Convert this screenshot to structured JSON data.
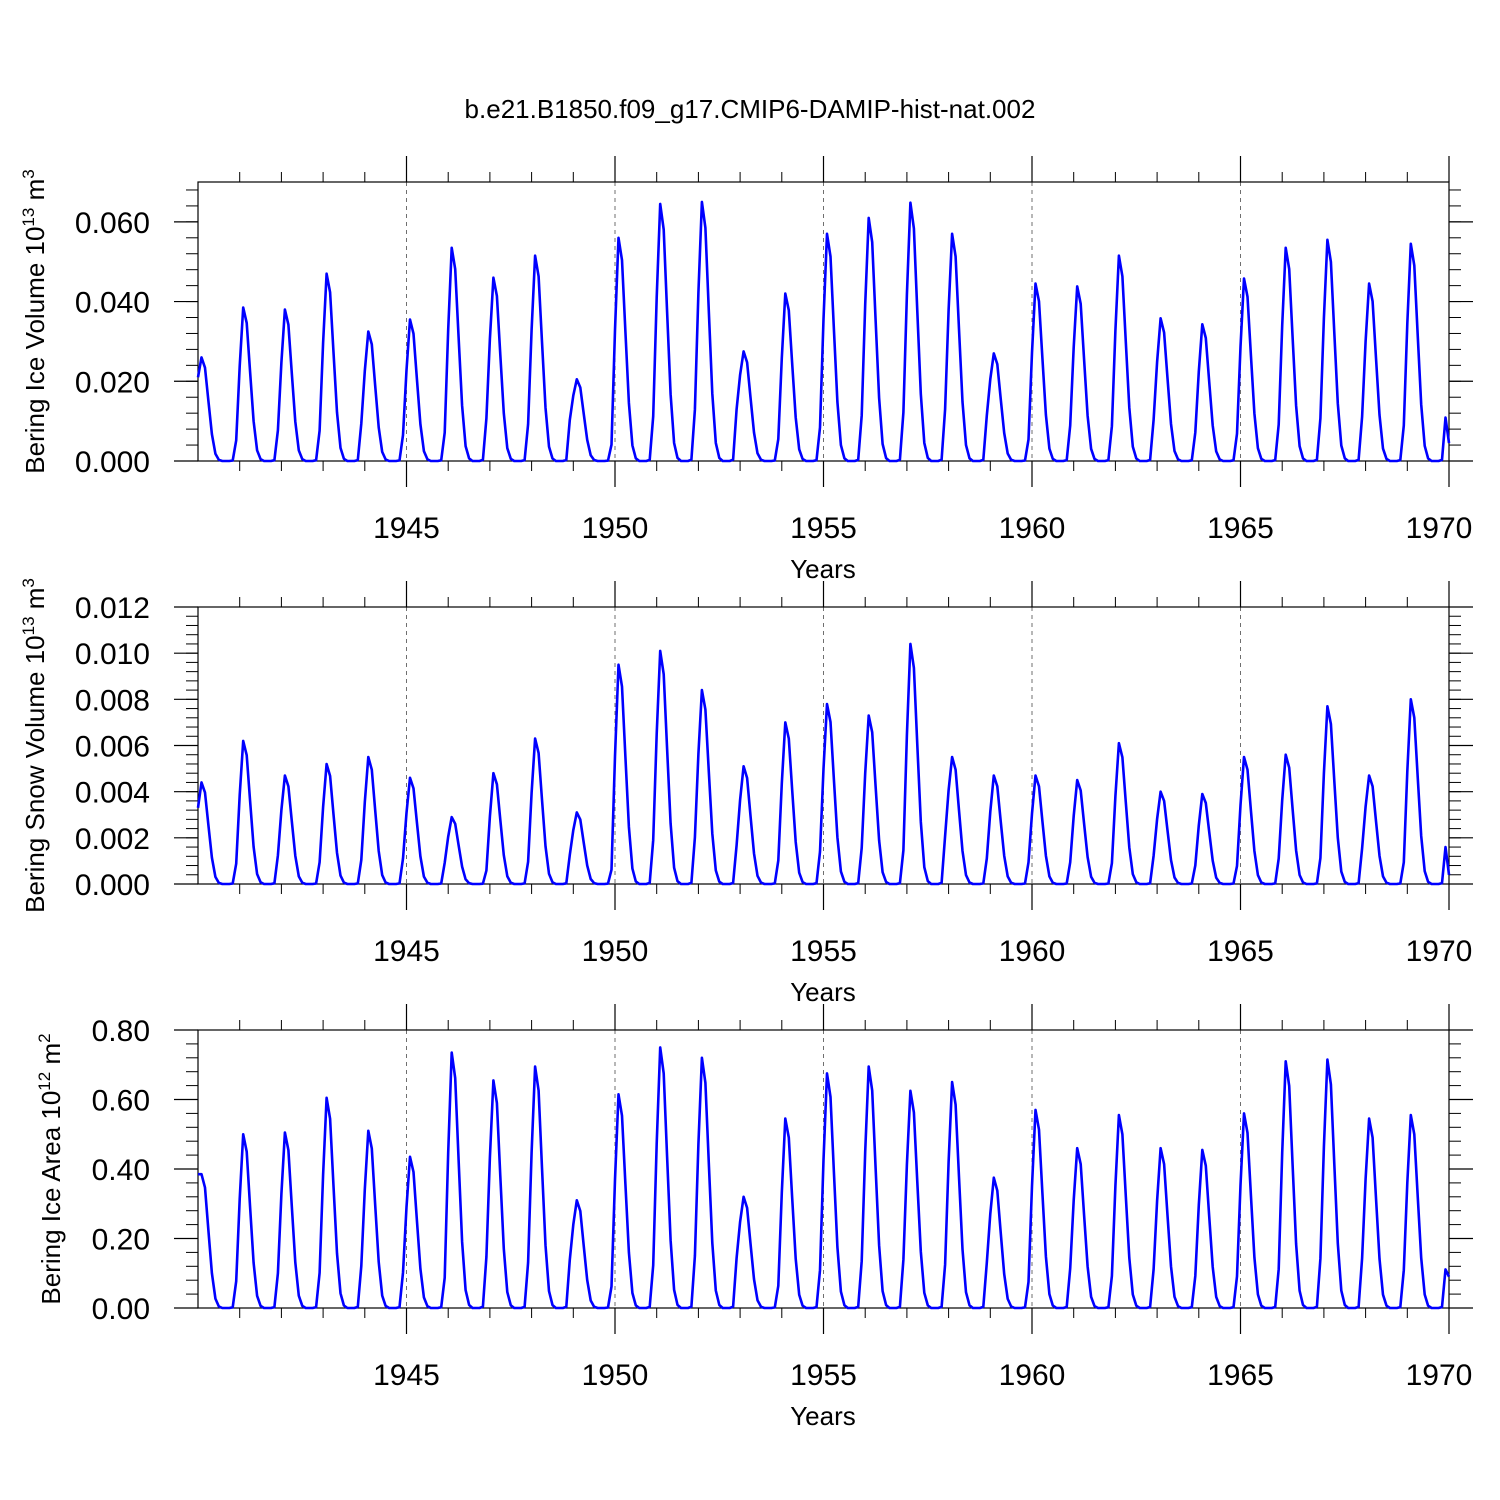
{
  "title": "b.e21.B1850.f09_g17.CMIP6-DAMIP-hist-nat.002",
  "colors": {
    "series": "#0000ff",
    "axis": "#000000",
    "grid": "#000000"
  },
  "chart_data": [
    {
      "type": "line",
      "ylabel": "Bering Ice Volume",
      "ylabel_units": "10",
      "ylabel_exp": "13",
      "ylabel_unit_suffix": "m",
      "ylabel_unit_exp": "3",
      "xlabel": "Years",
      "xlim": [
        1940,
        1970
      ],
      "xticks": [
        1945,
        1950,
        1955,
        1960,
        1965,
        1970
      ],
      "grid_x": [
        1945,
        1950,
        1955,
        1960,
        1965
      ],
      "ylim": [
        0,
        0.07
      ],
      "yticks": [
        0,
        0.02,
        0.04,
        0.06
      ],
      "ytick_labels": [
        "0.000",
        "0.020",
        "0.040",
        "0.060"
      ],
      "yminor_step": 0.004,
      "series": [
        {
          "name": "Bering Ice Volume",
          "peaks": [
            0.026,
            0.0385,
            0.038,
            0.047,
            0.0325,
            0.0355,
            0.0535,
            0.046,
            0.0515,
            0.0205,
            0.056,
            0.0645,
            0.065,
            0.0275,
            0.042,
            0.057,
            0.061,
            0.0648,
            0.057,
            0.027,
            0.0445,
            0.0438,
            0.0515,
            0.0358,
            0.0343,
            0.0458,
            0.0535,
            0.0555,
            0.0445,
            0.0545
          ],
          "start_value": 0.021,
          "end_value": 0.0045
        }
      ]
    },
    {
      "type": "line",
      "ylabel": "Bering Snow Volume",
      "ylabel_units": "10",
      "ylabel_exp": "13",
      "ylabel_unit_suffix": "m",
      "ylabel_unit_exp": "3",
      "xlabel": "Years",
      "xlim": [
        1940,
        1970
      ],
      "xticks": [
        1945,
        1950,
        1955,
        1960,
        1965,
        1970
      ],
      "grid_x": [
        1945,
        1950,
        1955,
        1960,
        1965
      ],
      "ylim": [
        0,
        0.012
      ],
      "yticks": [
        0,
        0.002,
        0.004,
        0.006,
        0.008,
        0.01,
        0.012
      ],
      "ytick_labels": [
        "0.000",
        "0.002",
        "0.004",
        "0.006",
        "0.008",
        "0.010",
        "0.012"
      ],
      "yminor_step": 0.0004,
      "series": [
        {
          "name": "Bering Snow Volume",
          "peaks": [
            0.0044,
            0.0062,
            0.0047,
            0.0052,
            0.0055,
            0.0046,
            0.0029,
            0.0048,
            0.0063,
            0.0031,
            0.0095,
            0.0101,
            0.0084,
            0.0051,
            0.007,
            0.0078,
            0.0073,
            0.0104,
            0.0055,
            0.0047,
            0.0047,
            0.0045,
            0.0061,
            0.004,
            0.0039,
            0.0055,
            0.0056,
            0.0077,
            0.0047,
            0.008
          ],
          "start_value": 0.0033,
          "end_value": 0.0004
        }
      ]
    },
    {
      "type": "line",
      "ylabel": "Bering Ice Area",
      "ylabel_units": "10",
      "ylabel_exp": "12",
      "ylabel_unit_suffix": "m",
      "ylabel_unit_exp": "2",
      "xlabel": "Years",
      "xlim": [
        1940,
        1970
      ],
      "xticks": [
        1945,
        1950,
        1955,
        1960,
        1965,
        1970
      ],
      "grid_x": [
        1945,
        1950,
        1955,
        1960,
        1965
      ],
      "ylim": [
        0,
        0.8
      ],
      "yticks": [
        0,
        0.2,
        0.4,
        0.6,
        0.8
      ],
      "ytick_labels": [
        "0.00",
        "0.20",
        "0.40",
        "0.60",
        "0.80"
      ],
      "yminor_step": 0.04,
      "series": [
        {
          "name": "Bering Ice Area",
          "peaks": [
            0.385,
            0.5,
            0.505,
            0.605,
            0.51,
            0.435,
            0.735,
            0.655,
            0.695,
            0.31,
            0.615,
            0.75,
            0.72,
            0.32,
            0.545,
            0.675,
            0.695,
            0.625,
            0.65,
            0.375,
            0.57,
            0.46,
            0.555,
            0.46,
            0.455,
            0.56,
            0.71,
            0.715,
            0.545,
            0.555
          ],
          "start_value": 0.385,
          "end_value": 0.09
        }
      ]
    }
  ]
}
